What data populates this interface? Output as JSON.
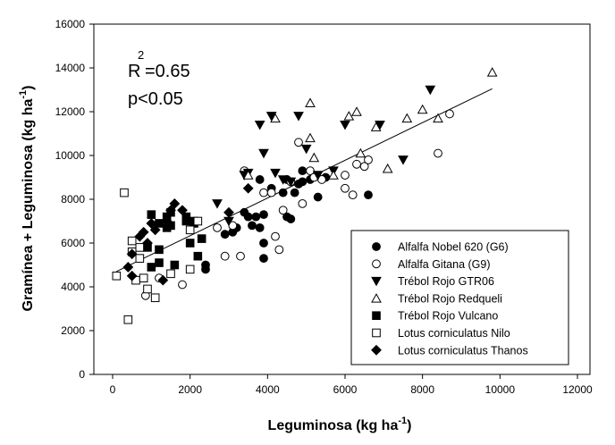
{
  "chart_data": {
    "type": "scatter",
    "xlabel_main": "Leguminosa (kg ha",
    "xlabel_sup": "-1",
    "xlabel_end": ")",
    "ylabel_main": "Gramínea + Leguminosa (kg ha",
    "ylabel_sup": "-1",
    "ylabel_end": ")",
    "xlim": [
      0,
      12000
    ],
    "ylim": [
      0,
      16000
    ],
    "xticks": [
      0,
      2000,
      4000,
      6000,
      8000,
      10000,
      12000
    ],
    "yticks": [
      0,
      2000,
      4000,
      6000,
      8000,
      10000,
      12000,
      14000,
      16000
    ],
    "xtick_labels": [
      "0",
      "2000",
      "4000",
      "6000",
      "8000",
      "10000",
      "12000"
    ],
    "ytick_labels": [
      "0",
      "2000",
      "4000",
      "6000",
      "8000",
      "10000",
      "12000",
      "14000",
      "16000"
    ],
    "grid": false,
    "legend_position": "bottom-right",
    "annotation": {
      "r_label": "R",
      "r_sup": "2",
      "r_value": "=0.65",
      "p_text": "p<0.05"
    },
    "trendline": {
      "x": [
        100,
        9800
      ],
      "y": [
        4700,
        13050
      ]
    },
    "series": [
      {
        "name": "Alfalfa Nobel 620 (G6)",
        "marker": "filled-circle",
        "points": [
          [
            2400,
            4800
          ],
          [
            2400,
            5000
          ],
          [
            2900,
            6400
          ],
          [
            3100,
            6500
          ],
          [
            3200,
            6700
          ],
          [
            3400,
            7400
          ],
          [
            3500,
            7200
          ],
          [
            3600,
            6800
          ],
          [
            3700,
            7200
          ],
          [
            3800,
            8900
          ],
          [
            3800,
            6700
          ],
          [
            3900,
            7300
          ],
          [
            3900,
            6000
          ],
          [
            3900,
            5300
          ],
          [
            4100,
            8500
          ],
          [
            4400,
            8300
          ],
          [
            4500,
            8900
          ],
          [
            4500,
            7200
          ],
          [
            4600,
            7100
          ],
          [
            4700,
            8300
          ],
          [
            4800,
            8700
          ],
          [
            4900,
            8800
          ],
          [
            4900,
            9300
          ],
          [
            5100,
            8900
          ],
          [
            5300,
            8100
          ],
          [
            5500,
            9000
          ],
          [
            6600,
            8200
          ]
        ]
      },
      {
        "name": "Alfalfa Gitana (G9)",
        "marker": "open-circle",
        "points": [
          [
            850,
            3600
          ],
          [
            1200,
            4400
          ],
          [
            1800,
            4100
          ],
          [
            2700,
            6700
          ],
          [
            2900,
            5400
          ],
          [
            3100,
            6800
          ],
          [
            3300,
            5400
          ],
          [
            3400,
            9300
          ],
          [
            3900,
            8300
          ],
          [
            4100,
            8300
          ],
          [
            4200,
            6300
          ],
          [
            4300,
            5700
          ],
          [
            4400,
            7500
          ],
          [
            4600,
            8800
          ],
          [
            4800,
            10600
          ],
          [
            4900,
            7800
          ],
          [
            5100,
            9300
          ],
          [
            5200,
            9000
          ],
          [
            5400,
            8900
          ],
          [
            6000,
            9100
          ],
          [
            6000,
            8500
          ],
          [
            6200,
            8200
          ],
          [
            6300,
            9600
          ],
          [
            6500,
            9500
          ],
          [
            6600,
            9800
          ],
          [
            8400,
            10100
          ],
          [
            8700,
            11900
          ]
        ]
      },
      {
        "name": "Trébol Rojo GTR06",
        "marker": "filled-triangle-down",
        "points": [
          [
            2700,
            7800
          ],
          [
            3000,
            7000
          ],
          [
            3400,
            9100
          ],
          [
            3500,
            9200
          ],
          [
            3800,
            11400
          ],
          [
            3900,
            10100
          ],
          [
            4100,
            11800
          ],
          [
            4200,
            9200
          ],
          [
            4400,
            8900
          ],
          [
            4600,
            8800
          ],
          [
            4800,
            11800
          ],
          [
            5000,
            10300
          ],
          [
            5300,
            9100
          ],
          [
            5700,
            9300
          ],
          [
            6000,
            11400
          ],
          [
            6900,
            11400
          ],
          [
            7500,
            9800
          ],
          [
            8200,
            13000
          ]
        ]
      },
      {
        "name": "Trébol Rojo Redqueli",
        "marker": "open-triangle-up",
        "points": [
          [
            3500,
            9100
          ],
          [
            4200,
            11700
          ],
          [
            5100,
            12400
          ],
          [
            5100,
            10800
          ],
          [
            5200,
            9900
          ],
          [
            5700,
            9100
          ],
          [
            6100,
            11800
          ],
          [
            6300,
            12000
          ],
          [
            6400,
            10100
          ],
          [
            6800,
            11300
          ],
          [
            7100,
            9400
          ],
          [
            7600,
            11700
          ],
          [
            8000,
            12100
          ],
          [
            8400,
            11700
          ],
          [
            9800,
            13800
          ]
        ]
      },
      {
        "name": "Trébol Rojo Vulcano",
        "marker": "filled-square",
        "points": [
          [
            900,
            5800
          ],
          [
            1000,
            7300
          ],
          [
            1000,
            4900
          ],
          [
            1200,
            6900
          ],
          [
            1200,
            5700
          ],
          [
            1200,
            5100
          ],
          [
            1400,
            7200
          ],
          [
            1400,
            6700
          ],
          [
            1500,
            7400
          ],
          [
            1500,
            6800
          ],
          [
            1600,
            5000
          ],
          [
            1900,
            7000
          ],
          [
            1900,
            7200
          ],
          [
            2000,
            6000
          ],
          [
            2100,
            6900
          ],
          [
            2100,
            7000
          ],
          [
            2200,
            5400
          ],
          [
            2300,
            6200
          ]
        ]
      },
      {
        "name": "Lotus corniculatus Nilo",
        "marker": "open-square",
        "points": [
          [
            100,
            4500
          ],
          [
            300,
            8300
          ],
          [
            400,
            2500
          ],
          [
            500,
            6100
          ],
          [
            500,
            5600
          ],
          [
            600,
            4300
          ],
          [
            700,
            5800
          ],
          [
            700,
            5300
          ],
          [
            800,
            4400
          ],
          [
            900,
            3900
          ],
          [
            1100,
            3500
          ],
          [
            1500,
            4600
          ],
          [
            2000,
            6600
          ],
          [
            2000,
            4800
          ],
          [
            2200,
            7000
          ]
        ]
      },
      {
        "name": "Lotus corniculatus Thanos",
        "marker": "filled-diamond",
        "points": [
          [
            400,
            4900
          ],
          [
            500,
            4500
          ],
          [
            500,
            5500
          ],
          [
            700,
            6300
          ],
          [
            800,
            6500
          ],
          [
            900,
            6000
          ],
          [
            1000,
            6900
          ],
          [
            1100,
            6600
          ],
          [
            1300,
            4300
          ],
          [
            1400,
            7000
          ],
          [
            1500,
            7500
          ],
          [
            1600,
            7800
          ],
          [
            1800,
            7500
          ],
          [
            3000,
            7400
          ],
          [
            3500,
            8500
          ]
        ]
      }
    ]
  }
}
